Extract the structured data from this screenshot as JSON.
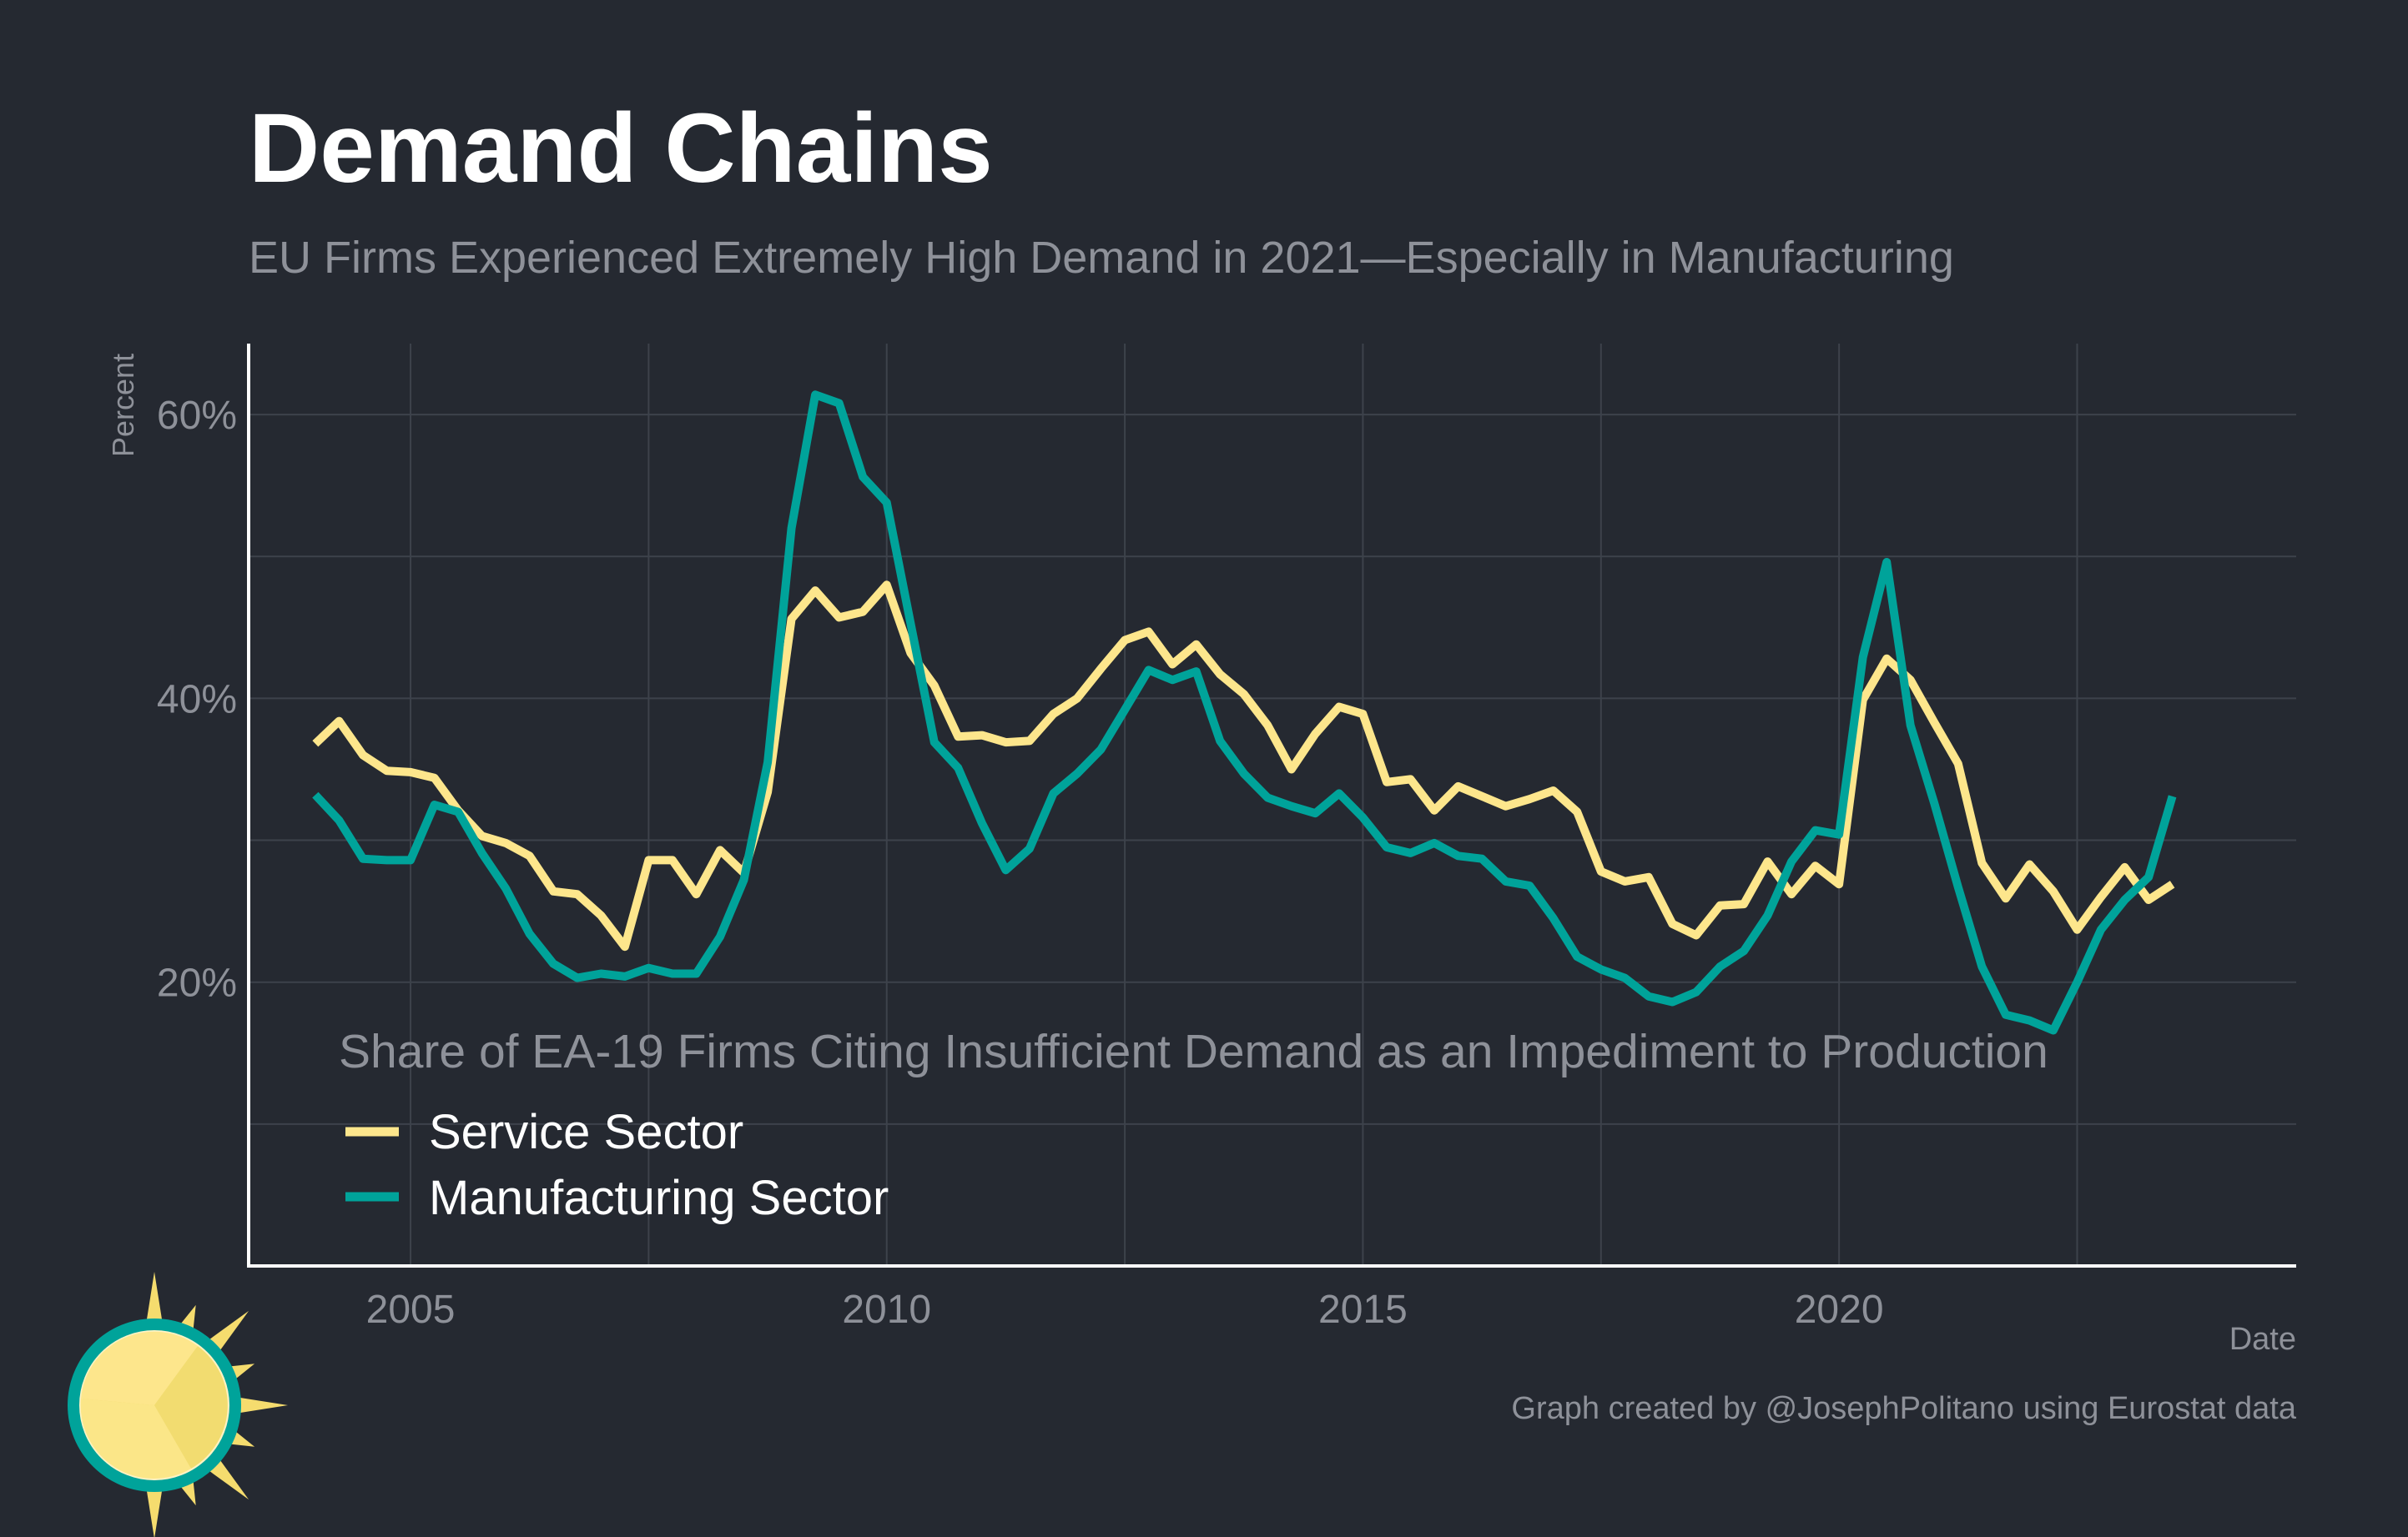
{
  "header": {
    "title": "Demand Chains",
    "subtitle": "EU Firms Experienced Extremely High Demand in 2021—Especially in Manufacturing"
  },
  "caption": "Graph created by @JosephPolitano using Eurostat data",
  "colors": {
    "background": "#252931",
    "grid": "#3d424b",
    "axis": "#ffffff",
    "service": "#fde68c",
    "manufacturing": "#00a39a",
    "muted_text": "#8e9199"
  },
  "icons": {
    "logo": "sun-logo-icon"
  },
  "chart_data": {
    "type": "line",
    "xlabel": "Date",
    "ylabel": "Percent",
    "xlim": [
      2003.3,
      2024.8
    ],
    "ylim": [
      0,
      65
    ],
    "x_ticks": [
      2005,
      2010,
      2015,
      2020
    ],
    "x_tick_labels": [
      "2005",
      "2010",
      "2015",
      "2020"
    ],
    "y_ticks": [
      20,
      40,
      60
    ],
    "y_tick_labels": [
      "20%",
      "40%",
      "60%"
    ],
    "y_minor_gridlines": [
      10,
      30,
      50
    ],
    "grid": true,
    "legend": {
      "title": "Share of EA-19 Firms Citing Insufficient Demand as an Impediment to Production",
      "placement": "bottom-left"
    },
    "x": [
      2004.0,
      2004.25,
      2004.5,
      2004.75,
      2005.0,
      2005.25,
      2005.5,
      2005.75,
      2006.0,
      2006.25,
      2006.5,
      2006.75,
      2007.0,
      2007.25,
      2007.5,
      2007.75,
      2008.0,
      2008.25,
      2008.5,
      2008.75,
      2009.0,
      2009.25,
      2009.5,
      2009.75,
      2010.0,
      2010.25,
      2010.5,
      2010.75,
      2011.0,
      2011.25,
      2011.5,
      2011.75,
      2012.0,
      2012.25,
      2012.5,
      2012.75,
      2013.0,
      2013.25,
      2013.5,
      2013.75,
      2014.0,
      2014.25,
      2014.5,
      2014.75,
      2015.0,
      2015.25,
      2015.5,
      2015.75,
      2016.0,
      2016.25,
      2016.5,
      2016.75,
      2017.0,
      2017.25,
      2017.5,
      2017.75,
      2018.0,
      2018.25,
      2018.5,
      2018.75,
      2019.0,
      2019.25,
      2019.5,
      2019.75,
      2020.0,
      2020.25,
      2020.5,
      2020.75,
      2021.0,
      2021.25,
      2021.5,
      2021.75,
      2022.0,
      2022.25,
      2022.5,
      2022.75,
      2023.0,
      2023.25,
      2023.5
    ],
    "series": [
      {
        "name": "Service Sector",
        "color": "#fde68c",
        "values": [
          36.8,
          38.4,
          36.0,
          34.9,
          34.8,
          34.4,
          32.1,
          30.3,
          29.8,
          28.9,
          26.4,
          26.2,
          24.7,
          22.5,
          28.6,
          28.6,
          26.2,
          29.3,
          27.7,
          33.4,
          45.6,
          47.6,
          45.7,
          46.1,
          48.0,
          43.2,
          40.9,
          37.3,
          37.4,
          36.9,
          37.0,
          38.9,
          40.0,
          42.1,
          44.1,
          44.7,
          42.4,
          43.8,
          41.7,
          40.3,
          38.1,
          35.0,
          37.5,
          39.4,
          38.9,
          34.1,
          34.3,
          32.1,
          33.8,
          33.1,
          32.4,
          32.9,
          33.5,
          32.0,
          27.8,
          27.1,
          27.4,
          24.1,
          23.3,
          25.4,
          25.5,
          28.5,
          26.2,
          28.2,
          26.9,
          39.9,
          42.8,
          41.3,
          38.3,
          35.4,
          28.4,
          25.9,
          28.3,
          26.4,
          23.7,
          26.0,
          28.1,
          25.8,
          26.9
        ]
      },
      {
        "name": "Manufacturing Sector",
        "color": "#00a39a",
        "values": [
          33.2,
          31.4,
          28.7,
          28.6,
          28.6,
          32.5,
          32.0,
          29.1,
          26.6,
          23.4,
          21.3,
          20.3,
          20.6,
          20.4,
          21.0,
          20.6,
          20.6,
          23.2,
          27.2,
          35.5,
          52.0,
          61.4,
          60.8,
          55.6,
          53.8,
          45.3,
          36.9,
          35.1,
          31.2,
          27.9,
          29.4,
          33.3,
          34.7,
          36.4,
          39.2,
          42.0,
          41.3,
          41.9,
          37.0,
          34.7,
          33.0,
          32.4,
          31.9,
          33.3,
          31.6,
          29.5,
          29.1,
          29.8,
          28.9,
          28.7,
          27.1,
          26.8,
          24.5,
          21.8,
          20.9,
          20.3,
          19.0,
          18.6,
          19.3,
          21.1,
          22.2,
          24.7,
          28.5,
          30.7,
          30.4,
          42.9,
          49.6,
          38.1,
          32.6,
          26.7,
          21.1,
          17.7,
          17.3,
          16.6,
          20.0,
          23.7,
          25.8,
          27.4,
          33.1
        ]
      }
    ]
  }
}
